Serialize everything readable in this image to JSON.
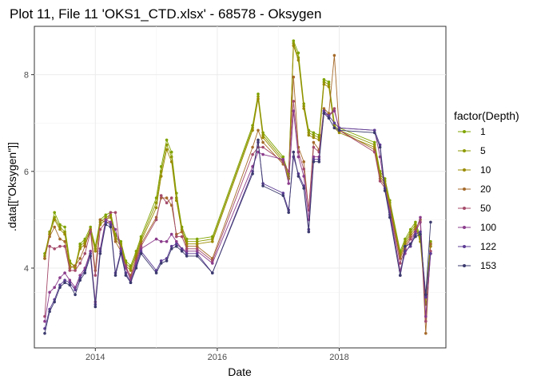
{
  "chart_data": {
    "type": "line",
    "title": "Plot 11, File 11 'OKS1_CTD.xlsx' - 68578  -  Oksygen",
    "xlabel": "Date",
    "ylabel": ".data[[\"Oksygen\"]]",
    "xlim": [
      2013.0,
      2019.75
    ],
    "ylim": [
      2.35,
      9.0
    ],
    "x_ticks": [
      2014,
      2016,
      2018
    ],
    "y_ticks": [
      4,
      6,
      8
    ],
    "grid": true,
    "legend_title": "factor(Depth)",
    "legend_position": "right",
    "series": [
      {
        "name": "1",
        "color": "#7fa400",
        "x": [
          2013.17,
          2013.25,
          2013.33,
          2013.42,
          2013.5,
          2013.58,
          2013.67,
          2013.75,
          2013.83,
          2013.92,
          2014.0,
          2014.08,
          2014.17,
          2014.25,
          2014.33,
          2014.42,
          2014.5,
          2014.58,
          2014.67,
          2014.75,
          2015.0,
          2015.08,
          2015.17,
          2015.25,
          2015.33,
          2015.42,
          2015.5,
          2015.67,
          2015.92,
          2016.58,
          2016.67,
          2016.75,
          2017.08,
          2017.17,
          2017.25,
          2017.33,
          2017.42,
          2017.5,
          2017.58,
          2017.67,
          2017.75,
          2017.83,
          2017.92,
          2018.0,
          2018.58,
          2018.67,
          2018.75,
          2018.83,
          2019.0,
          2019.08,
          2019.17,
          2019.25,
          2019.33,
          2019.42,
          2019.5
        ],
        "y": [
          4.3,
          4.7,
          5.15,
          4.9,
          4.85,
          4.15,
          4.0,
          4.5,
          4.6,
          4.85,
          4.45,
          5.0,
          5.1,
          5.15,
          4.7,
          4.55,
          4.15,
          4.05,
          4.35,
          4.65,
          5.45,
          6.1,
          6.65,
          6.4,
          5.55,
          4.85,
          4.6,
          4.6,
          4.65,
          6.95,
          7.6,
          6.8,
          6.3,
          5.95,
          8.7,
          8.45,
          7.4,
          6.85,
          6.8,
          6.75,
          7.9,
          7.85,
          7.0,
          6.9,
          6.6,
          6.0,
          5.85,
          5.4,
          4.35,
          4.6,
          4.8,
          4.95,
          4.65,
          3.4,
          4.55
        ]
      },
      {
        "name": "5",
        "color": "#8d9a00",
        "x": [
          2013.17,
          2013.25,
          2013.33,
          2013.42,
          2013.5,
          2013.58,
          2013.67,
          2013.75,
          2013.83,
          2013.92,
          2014.0,
          2014.08,
          2014.17,
          2014.25,
          2014.33,
          2014.42,
          2014.5,
          2014.58,
          2014.67,
          2014.75,
          2015.0,
          2015.08,
          2015.17,
          2015.25,
          2015.33,
          2015.42,
          2015.5,
          2015.67,
          2015.92,
          2016.58,
          2016.67,
          2016.75,
          2017.08,
          2017.17,
          2017.25,
          2017.33,
          2017.42,
          2017.5,
          2017.58,
          2017.67,
          2017.75,
          2017.83,
          2017.92,
          2018.0,
          2018.58,
          2018.67,
          2018.75,
          2018.83,
          2019.0,
          2019.08,
          2019.17,
          2019.25,
          2019.33,
          2019.42,
          2019.5
        ],
        "y": [
          4.25,
          4.75,
          5.05,
          4.85,
          4.75,
          4.1,
          4.05,
          4.45,
          4.55,
          4.8,
          4.4,
          4.95,
          5.05,
          5.1,
          4.65,
          4.5,
          4.1,
          4.0,
          4.3,
          4.6,
          5.35,
          6.0,
          6.55,
          6.3,
          5.45,
          4.8,
          4.55,
          4.55,
          4.6,
          6.9,
          7.55,
          6.75,
          6.25,
          5.9,
          8.65,
          8.35,
          7.35,
          6.8,
          6.75,
          6.7,
          7.85,
          7.8,
          6.95,
          6.85,
          6.55,
          5.95,
          5.8,
          5.35,
          4.3,
          4.55,
          4.75,
          4.9,
          4.6,
          3.3,
          4.5
        ]
      },
      {
        "name": "10",
        "color": "#9a8b00",
        "x": [
          2013.17,
          2013.25,
          2013.33,
          2013.42,
          2013.5,
          2013.58,
          2013.67,
          2013.75,
          2013.83,
          2013.92,
          2014.0,
          2014.08,
          2014.17,
          2014.25,
          2014.33,
          2014.42,
          2014.5,
          2014.58,
          2014.67,
          2014.75,
          2015.0,
          2015.08,
          2015.17,
          2015.25,
          2015.33,
          2015.42,
          2015.5,
          2015.67,
          2015.92,
          2016.58,
          2016.67,
          2016.75,
          2017.08,
          2017.17,
          2017.25,
          2017.33,
          2017.42,
          2017.5,
          2017.58,
          2017.67,
          2017.75,
          2017.83,
          2017.92,
          2018.0,
          2018.58,
          2018.67,
          2018.75,
          2018.83,
          2019.0,
          2019.08,
          2019.17,
          2019.25,
          2019.33,
          2019.42,
          2019.5
        ],
        "y": [
          4.2,
          4.7,
          5.0,
          4.8,
          4.7,
          4.05,
          4.0,
          4.4,
          4.5,
          4.75,
          4.35,
          4.9,
          5.0,
          5.05,
          4.6,
          4.45,
          4.05,
          3.95,
          4.25,
          4.55,
          5.25,
          5.9,
          6.45,
          6.2,
          5.4,
          4.75,
          4.5,
          4.5,
          4.55,
          6.85,
          7.5,
          6.7,
          6.2,
          5.85,
          8.6,
          8.3,
          7.3,
          6.75,
          6.7,
          6.65,
          7.8,
          7.75,
          6.9,
          6.8,
          6.5,
          5.9,
          5.75,
          5.3,
          4.25,
          4.5,
          4.7,
          4.85,
          4.55,
          3.25,
          4.45
        ]
      },
      {
        "name": "20",
        "color": "#a56a2a",
        "x": [
          2013.17,
          2013.25,
          2013.33,
          2013.42,
          2013.5,
          2013.58,
          2013.67,
          2013.75,
          2013.83,
          2013.92,
          2014.0,
          2014.08,
          2014.17,
          2014.25,
          2014.33,
          2014.42,
          2014.5,
          2014.58,
          2014.67,
          2014.75,
          2015.0,
          2015.08,
          2015.17,
          2015.25,
          2015.33,
          2015.42,
          2015.5,
          2015.67,
          2015.92,
          2016.58,
          2016.67,
          2016.75,
          2017.08,
          2017.17,
          2017.25,
          2017.33,
          2017.42,
          2017.5,
          2017.58,
          2017.67,
          2017.75,
          2017.83,
          2017.92,
          2018.0,
          2018.58,
          2018.67,
          2018.75,
          2018.83,
          2019.0,
          2019.08,
          2019.17,
          2019.25,
          2019.33,
          2019.42,
          2019.5
        ],
        "y": [
          4.2,
          4.65,
          4.85,
          4.6,
          4.55,
          4.0,
          4.05,
          4.2,
          4.45,
          4.8,
          3.95,
          5.0,
          4.95,
          4.95,
          4.55,
          4.35,
          4.0,
          3.85,
          4.2,
          4.5,
          5.05,
          5.45,
          5.45,
          5.3,
          4.7,
          4.75,
          4.45,
          4.45,
          4.2,
          6.5,
          6.85,
          6.6,
          6.15,
          6.0,
          7.95,
          6.5,
          6.2,
          5.2,
          6.6,
          6.45,
          7.3,
          7.2,
          8.4,
          6.85,
          6.45,
          5.85,
          5.7,
          5.25,
          4.2,
          4.45,
          4.65,
          4.8,
          5.0,
          2.65,
          4.5
        ]
      },
      {
        "name": "50",
        "color": "#a44a6a",
        "x": [
          2013.17,
          2013.25,
          2013.33,
          2013.42,
          2013.5,
          2013.58,
          2013.67,
          2013.75,
          2013.83,
          2013.92,
          2014.0,
          2014.08,
          2014.17,
          2014.25,
          2014.33,
          2014.42,
          2014.5,
          2014.58,
          2014.67,
          2014.75,
          2015.0,
          2015.08,
          2015.17,
          2015.25,
          2015.33,
          2015.42,
          2015.5,
          2015.67,
          2015.92,
          2016.58,
          2016.67,
          2016.75,
          2017.08,
          2017.17,
          2017.25,
          2017.33,
          2017.42,
          2017.5,
          2017.58,
          2017.67,
          2017.75,
          2017.83,
          2017.92,
          2018.0,
          2018.58,
          2018.67,
          2018.75,
          2018.83,
          2019.0,
          2019.08,
          2019.17,
          2019.25,
          2019.33,
          2019.42,
          2019.5
        ],
        "y": [
          3.0,
          4.45,
          4.4,
          4.45,
          4.45,
          3.95,
          3.95,
          4.1,
          4.3,
          4.75,
          3.85,
          4.8,
          4.95,
          5.15,
          5.15,
          4.3,
          4.05,
          3.8,
          4.15,
          4.45,
          5.0,
          5.5,
          5.35,
          5.45,
          4.65,
          4.65,
          4.4,
          4.4,
          4.15,
          6.35,
          6.5,
          6.5,
          6.2,
          6.0,
          7.45,
          6.4,
          6.05,
          5.2,
          6.5,
          6.4,
          7.25,
          7.15,
          7.3,
          6.85,
          6.4,
          5.8,
          5.65,
          5.2,
          4.1,
          4.4,
          4.6,
          4.75,
          4.95,
          2.9,
          4.35
        ]
      },
      {
        "name": "100",
        "color": "#8b3c8c",
        "x": [
          2013.17,
          2013.25,
          2013.33,
          2013.42,
          2013.5,
          2013.58,
          2013.67,
          2013.75,
          2013.83,
          2013.92,
          2014.0,
          2014.08,
          2014.17,
          2014.25,
          2014.33,
          2014.42,
          2014.5,
          2014.58,
          2014.67,
          2014.75,
          2015.0,
          2015.08,
          2015.17,
          2015.25,
          2015.33,
          2015.42,
          2015.5,
          2015.67,
          2015.92,
          2016.58,
          2016.67,
          2016.75,
          2017.08,
          2017.17,
          2017.25,
          2017.33,
          2017.42,
          2017.5,
          2017.58,
          2017.67,
          2017.75,
          2017.83,
          2017.92,
          2018.0,
          2018.58,
          2018.67,
          2018.75,
          2018.83,
          2019.0,
          2019.08,
          2019.17,
          2019.25,
          2019.33,
          2019.42,
          2019.5
        ],
        "y": [
          2.9,
          3.5,
          3.6,
          3.8,
          3.9,
          3.75,
          3.6,
          3.85,
          4.0,
          4.35,
          3.3,
          4.4,
          5.0,
          4.95,
          4.8,
          4.4,
          4.0,
          3.75,
          4.1,
          4.4,
          4.6,
          4.55,
          4.55,
          4.7,
          4.55,
          4.4,
          4.35,
          4.35,
          4.1,
          6.1,
          6.4,
          6.35,
          6.25,
          5.75,
          7.25,
          6.3,
          5.9,
          5.0,
          6.3,
          6.3,
          7.2,
          7.15,
          7.25,
          6.9,
          6.85,
          6.3,
          5.6,
          5.15,
          3.95,
          4.3,
          4.5,
          4.75,
          5.05,
          3.0,
          4.3
        ]
      },
      {
        "name": "122",
        "color": "#5c3c94",
        "x": [
          2013.17,
          2013.25,
          2013.33,
          2013.42,
          2013.5,
          2013.58,
          2013.67,
          2013.75,
          2013.83,
          2013.92,
          2014.0,
          2014.08,
          2014.17,
          2014.25,
          2014.33,
          2014.42,
          2014.5,
          2014.58,
          2014.67,
          2014.75,
          2015.0,
          2015.08,
          2015.17,
          2015.25,
          2015.33,
          2015.42,
          2015.5,
          2015.67,
          2015.92,
          2016.58,
          2016.67,
          2016.75,
          2017.08,
          2017.17,
          2017.25,
          2017.33,
          2017.42,
          2017.5,
          2017.58,
          2017.67,
          2017.75,
          2017.83,
          2017.92,
          2018.0,
          2018.58,
          2018.67,
          2018.75,
          2018.83,
          2019.0,
          2019.08,
          2019.17,
          2019.25,
          2019.33,
          2019.42,
          2019.5
        ],
        "y": [
          2.75,
          3.15,
          3.35,
          3.65,
          3.75,
          3.7,
          3.55,
          3.8,
          3.95,
          4.3,
          3.25,
          4.35,
          4.95,
          4.9,
          3.9,
          4.35,
          3.9,
          3.7,
          4.05,
          4.35,
          3.95,
          4.15,
          4.2,
          4.45,
          4.5,
          4.4,
          4.3,
          4.3,
          3.9,
          6.0,
          6.6,
          5.75,
          5.55,
          5.2,
          6.3,
          5.95,
          5.7,
          4.8,
          6.25,
          6.25,
          7.25,
          7.15,
          7.0,
          6.9,
          6.85,
          6.55,
          5.65,
          5.1,
          3.85,
          4.35,
          4.45,
          4.7,
          4.75,
          3.4,
          4.3
        ]
      },
      {
        "name": "153",
        "color": "#3b3a6e",
        "x": [
          2013.17,
          2013.25,
          2013.33,
          2013.42,
          2013.5,
          2013.58,
          2013.67,
          2013.75,
          2013.83,
          2013.92,
          2014.0,
          2014.08,
          2014.17,
          2014.25,
          2014.33,
          2014.42,
          2014.5,
          2014.58,
          2014.67,
          2014.75,
          2015.0,
          2015.08,
          2015.17,
          2015.25,
          2015.33,
          2015.42,
          2015.5,
          2015.67,
          2015.92,
          2016.58,
          2016.67,
          2016.75,
          2017.08,
          2017.17,
          2017.25,
          2017.33,
          2017.42,
          2017.5,
          2017.58,
          2017.67,
          2017.75,
          2017.83,
          2017.92,
          2018.0,
          2018.58,
          2018.67,
          2018.75,
          2018.83,
          2019.0,
          2019.08,
          2019.17,
          2019.25,
          2019.33,
          2019.42,
          2019.5
        ],
        "y": [
          2.65,
          3.1,
          3.3,
          3.6,
          3.7,
          3.65,
          3.45,
          3.75,
          3.9,
          4.25,
          3.2,
          4.3,
          4.9,
          4.85,
          3.85,
          4.3,
          3.85,
          3.7,
          4.0,
          4.3,
          3.9,
          4.1,
          4.15,
          4.4,
          4.45,
          4.35,
          4.25,
          4.25,
          3.9,
          5.95,
          6.65,
          5.7,
          5.5,
          5.15,
          6.4,
          5.9,
          5.65,
          4.75,
          6.2,
          6.2,
          7.2,
          7.1,
          6.9,
          6.85,
          6.8,
          6.5,
          5.6,
          5.05,
          3.85,
          4.45,
          4.5,
          4.65,
          4.7,
          3.45,
          4.95
        ]
      }
    ]
  }
}
